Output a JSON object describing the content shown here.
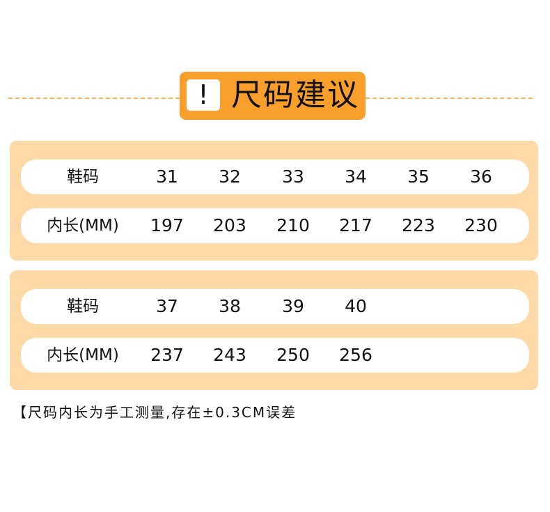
{
  "header": {
    "icon": "exclamation-icon",
    "icon_text": "!",
    "title": "尺码建议",
    "accent": "#fa9f2c"
  },
  "tables": [
    {
      "size_label": "鞋码",
      "length_label": "内长(MM)",
      "sizes": [
        "31",
        "32",
        "33",
        "34",
        "35",
        "36"
      ],
      "lengths": [
        "197",
        "203",
        "210",
        "217",
        "223",
        "230"
      ]
    },
    {
      "size_label": "鞋码",
      "length_label": "内长(MM)",
      "sizes": [
        "37",
        "38",
        "39",
        "40"
      ],
      "lengths": [
        "237",
        "243",
        "250",
        "256"
      ]
    }
  ],
  "note": "【尺码内长为手工测量,存在±0.3CM误差"
}
